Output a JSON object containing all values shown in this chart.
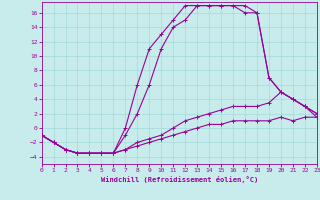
{
  "xlabel": "Windchill (Refroidissement éolien,°C)",
  "background_color": "#c8ecec",
  "line_color": "#990099",
  "grid_color": "#aadddd",
  "xlim": [
    0,
    23
  ],
  "ylim": [
    -5,
    17.5
  ],
  "xticks": [
    0,
    1,
    2,
    3,
    4,
    5,
    6,
    7,
    8,
    9,
    10,
    11,
    12,
    13,
    14,
    15,
    16,
    17,
    18,
    19,
    20,
    21,
    22,
    23
  ],
  "yticks": [
    -4,
    -2,
    0,
    2,
    4,
    6,
    8,
    10,
    12,
    14,
    16
  ],
  "series": [
    {
      "x": [
        0,
        1,
        2,
        3,
        4,
        5,
        6,
        7,
        8,
        9,
        10,
        11,
        12,
        13,
        14,
        15,
        16,
        17,
        18,
        19,
        20,
        21,
        22,
        23
      ],
      "y": [
        -1,
        -2,
        -3,
        -3.5,
        -3.5,
        -3.5,
        -3.5,
        -3,
        -2.5,
        -2,
        -1.5,
        -1,
        -0.5,
        0,
        0.5,
        0.5,
        1,
        1,
        1,
        1,
        1.5,
        1,
        1.5,
        1.5
      ]
    },
    {
      "x": [
        0,
        1,
        2,
        3,
        4,
        5,
        6,
        7,
        8,
        9,
        10,
        11,
        12,
        13,
        14,
        15,
        16,
        17,
        18,
        19,
        20,
        21,
        22,
        23
      ],
      "y": [
        -1,
        -2,
        -3,
        -3.5,
        -3.5,
        -3.5,
        -3.5,
        -3,
        -2,
        -1.5,
        -1,
        0,
        1,
        1.5,
        2,
        2.5,
        3,
        3,
        3,
        3.5,
        5,
        4,
        3,
        2
      ]
    },
    {
      "x": [
        0,
        1,
        2,
        3,
        4,
        5,
        6,
        7,
        8,
        9,
        10,
        11,
        12,
        13,
        14,
        15,
        16,
        17,
        18,
        19,
        20,
        21,
        22,
        23
      ],
      "y": [
        -1,
        -2,
        -3,
        -3.5,
        -3.5,
        -3.5,
        -3.5,
        -1,
        2,
        6,
        11,
        14,
        15,
        17,
        17,
        17,
        17,
        17,
        16,
        7,
        5,
        4,
        3,
        2
      ]
    },
    {
      "x": [
        0,
        1,
        2,
        3,
        4,
        5,
        6,
        7,
        8,
        9,
        10,
        11,
        12,
        13,
        14,
        15,
        16,
        17,
        18,
        19,
        20,
        21,
        22,
        23
      ],
      "y": [
        -1,
        -2,
        -3,
        -3.5,
        -3.5,
        -3.5,
        -3.5,
        0,
        6,
        11,
        13,
        15,
        17,
        17,
        17,
        17,
        17,
        16,
        16,
        7,
        5,
        4,
        3,
        1.5
      ]
    }
  ]
}
